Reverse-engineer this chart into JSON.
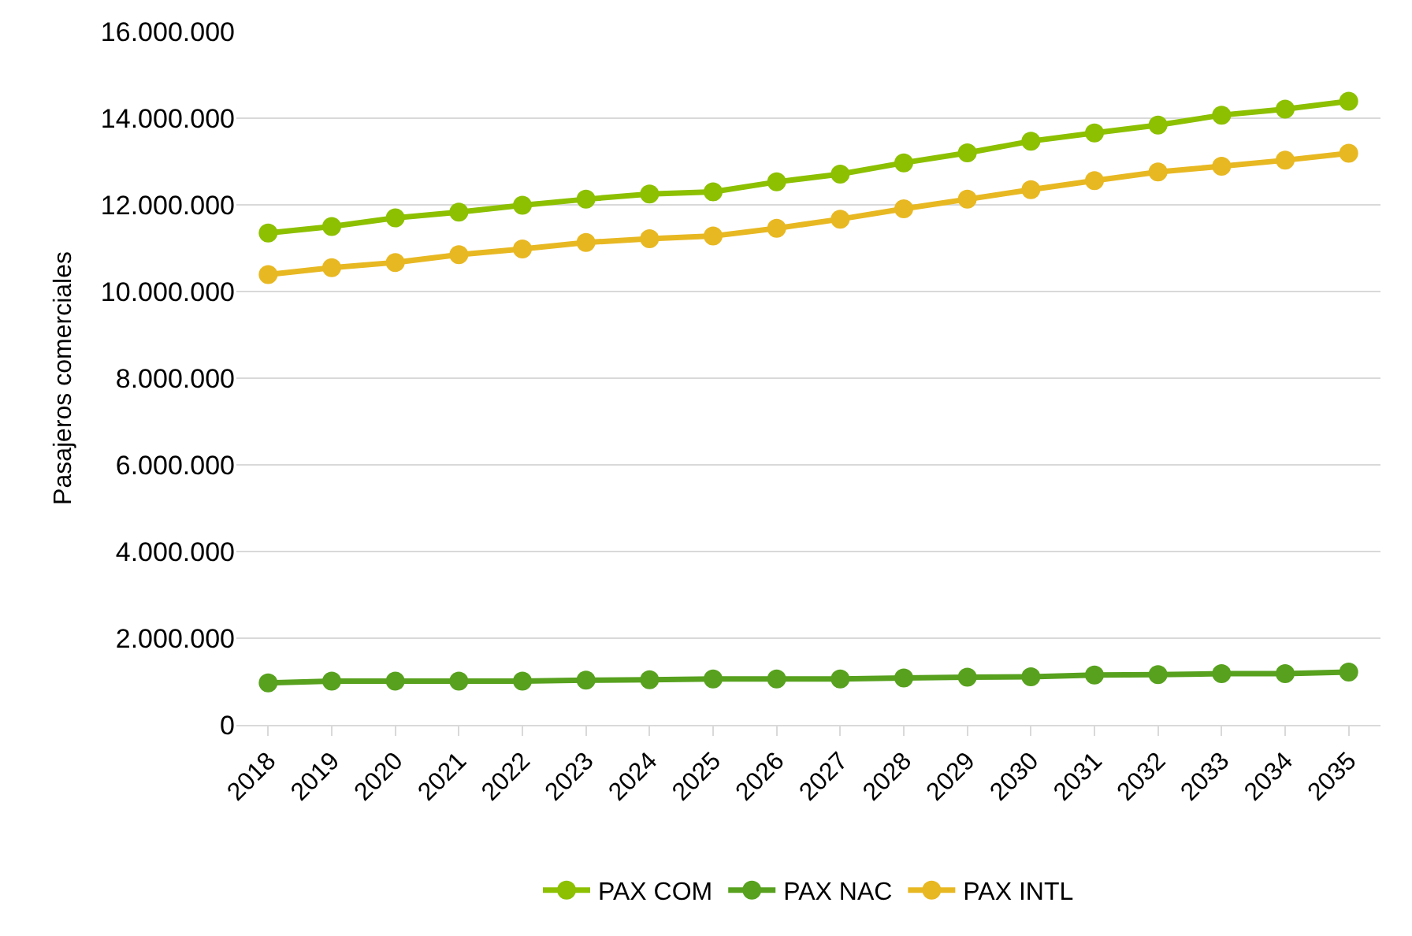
{
  "chart_data": {
    "type": "line",
    "ylabel": "Pasajeros comerciales",
    "categories": [
      "2018",
      "2019",
      "2020",
      "2021",
      "2022",
      "2023",
      "2024",
      "2025",
      "2026",
      "2027",
      "2028",
      "2029",
      "2030",
      "2031",
      "2032",
      "2033",
      "2034",
      "2035"
    ],
    "series": [
      {
        "name": "PAX COM",
        "color": "#8cc000",
        "values": [
          11350000,
          11500000,
          11700000,
          11830000,
          11990000,
          12130000,
          12250000,
          12300000,
          12530000,
          12710000,
          12970000,
          13200000,
          13470000,
          13660000,
          13840000,
          14070000,
          14210000,
          14390000
        ]
      },
      {
        "name": "PAX NAC",
        "color": "#57a11e",
        "values": [
          970000,
          1010000,
          1010000,
          1010000,
          1010000,
          1030000,
          1040000,
          1060000,
          1060000,
          1060000,
          1080000,
          1100000,
          1110000,
          1150000,
          1160000,
          1180000,
          1180000,
          1220000
        ]
      },
      {
        "name": "PAX INTL",
        "color": "#e8b822",
        "values": [
          10390000,
          10550000,
          10670000,
          10850000,
          10980000,
          11130000,
          11220000,
          11280000,
          11460000,
          11670000,
          11910000,
          12130000,
          12350000,
          12560000,
          12760000,
          12890000,
          13030000,
          13190000
        ]
      }
    ],
    "ylim": [
      0,
      16000000
    ],
    "yticks": [
      {
        "value": 0,
        "label": "0"
      },
      {
        "value": 2000000,
        "label": "2.000.000"
      },
      {
        "value": 4000000,
        "label": "4.000.000"
      },
      {
        "value": 6000000,
        "label": "6.000.000"
      },
      {
        "value": 8000000,
        "label": "8.000.000"
      },
      {
        "value": 10000000,
        "label": "10.000.000"
      },
      {
        "value": 12000000,
        "label": "12.000.000"
      },
      {
        "value": 14000000,
        "label": "14.000.000"
      },
      {
        "value": 16000000,
        "label": "16.000.000"
      }
    ],
    "grid": "y",
    "legend": "bottom",
    "marker": "circle",
    "line_style": "solid"
  }
}
